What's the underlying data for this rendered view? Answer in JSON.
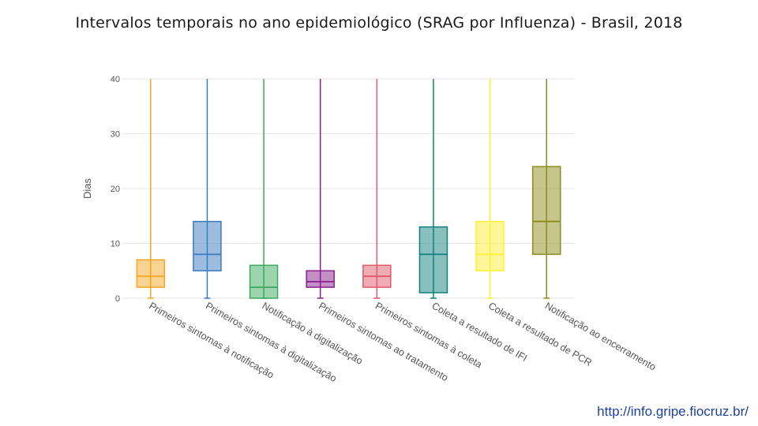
{
  "title": "Intervalos temporais no ano epidemiológico (SRAG por Influenza) - Brasil, 2018",
  "footer": {
    "link_text": "http://info.gripe.fiocruz.br/"
  },
  "chart_data": {
    "type": "box",
    "ylabel": "Dias",
    "xlabel": "",
    "ylim": [
      0,
      40
    ],
    "yticks": [
      0,
      10,
      20,
      30,
      40
    ],
    "grid": true,
    "categories": [
      "Primeiros sintomas à notificação",
      "Primeiros sintomas à digitalização",
      "Notificação à digitalização",
      "Primeiros sintomas ao tratamento",
      "Primeiros sintomas à coleta",
      "Coleta a resultado de IFI",
      "Coleta a resultado de PCR",
      "Notificação ao encerramento"
    ],
    "boxes": [
      {
        "q1": 2,
        "median": 4,
        "q3": 7,
        "lower": 0,
        "upper": 40,
        "color": "#f5a623"
      },
      {
        "q1": 5,
        "median": 8,
        "q3": 14,
        "lower": 0,
        "upper": 40,
        "color": "#3a7bbf"
      },
      {
        "q1": 0,
        "median": 2,
        "q3": 6,
        "lower": 0,
        "upper": 40,
        "color": "#3aaa5c"
      },
      {
        "q1": 2,
        "median": 3,
        "q3": 5,
        "lower": 0,
        "upper": 40,
        "color": "#8a1f8c"
      },
      {
        "q1": 2,
        "median": 4,
        "q3": 6,
        "lower": 0,
        "upper": 40,
        "color": "#e05a6a"
      },
      {
        "q1": 1,
        "median": 8,
        "q3": 13,
        "lower": 0,
        "upper": 40,
        "color": "#11807f"
      },
      {
        "q1": 5,
        "median": 8,
        "q3": 14,
        "lower": 0,
        "upper": 40,
        "color": "#ffee33"
      },
      {
        "q1": 8,
        "median": 14,
        "q3": 24,
        "lower": 0,
        "upper": 40,
        "color": "#8c8c1a"
      }
    ]
  }
}
